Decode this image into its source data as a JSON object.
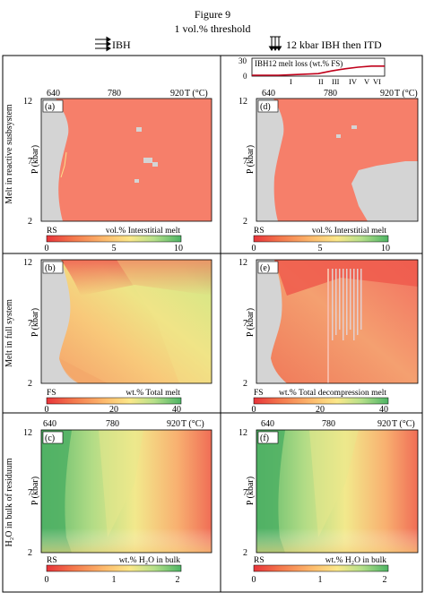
{
  "figure": {
    "title": "Figure 9",
    "subtitle": "1 vol.% threshold",
    "col_left_header": "IBH",
    "col_right_header": "12 kbar IBH then ITD"
  },
  "rows": [
    {
      "label": "Melt in reactive susbsystem"
    },
    {
      "label": "Melt in full system"
    },
    {
      "label": "H₂O in bulk of residuum"
    }
  ],
  "axes": {
    "x_ticks": [
      "640",
      "780",
      "920"
    ],
    "x_unit": "T (°C)",
    "y_ticks": [
      "12",
      "7",
      "2"
    ],
    "y_label": "P (kbar)"
  },
  "panels": [
    {
      "id": "a",
      "letter": "(a)"
    },
    {
      "id": "b",
      "letter": "(b)"
    },
    {
      "id": "c",
      "letter": "(c)"
    },
    {
      "id": "d",
      "letter": "(d)"
    },
    {
      "id": "e",
      "letter": "(e)"
    },
    {
      "id": "f",
      "letter": "(f)"
    }
  ],
  "colorbars": [
    {
      "row": 0,
      "left_tag": "RS",
      "left_title": "vol.% Interstitial melt",
      "right_tag": "RS",
      "right_title": "vol.% Interstitial melt",
      "ticks": [
        "0",
        "5",
        "10"
      ]
    },
    {
      "row": 1,
      "left_tag": "FS",
      "left_title": "wt.% Total melt",
      "right_tag": "FS",
      "right_title": "wt.% Total decompression melt",
      "ticks": [
        "0",
        "20",
        "40"
      ]
    },
    {
      "row": 2,
      "left_tag": "RS",
      "left_title": "wt.% H₂O in bulk",
      "right_tag": "RS",
      "right_title": "wt.% H₂O in bulk",
      "ticks": [
        "0",
        "1",
        "2"
      ]
    }
  ],
  "inset": {
    "title": "IBH12 melt loss (wt.% FS)",
    "y_ticks": [
      "30",
      "0"
    ],
    "stage_labels": [
      "I",
      "II",
      "III",
      "IV",
      "V",
      "VI"
    ]
  },
  "colors": {
    "grey_region": "#d4d4d4",
    "melt_fill": "#f67f6a",
    "ramp_red": "#d7191c",
    "ramp_yellow": "#fdf08d",
    "ramp_green": "#3aa65a",
    "inset_line": "#c0001a"
  },
  "chart_data": {
    "type": "heatmap",
    "title": "Figure 9",
    "subtitle": "1 vol.% threshold",
    "xlabel": "T (°C)",
    "ylabel": "P (kbar)",
    "xlim": [
      640,
      920
    ],
    "ylim": [
      2,
      12
    ],
    "panels": [
      "(a)",
      "(b)",
      "(c)",
      "(d)",
      "(e)",
      "(f)"
    ],
    "colorbar_ranges": [
      [
        0,
        10
      ],
      [
        0,
        40
      ],
      [
        0,
        2
      ]
    ],
    "inset": {
      "type": "line",
      "title": "IBH12 melt loss (wt.% FS)",
      "ylim": [
        0,
        30
      ],
      "y": [
        0,
        0,
        0,
        1,
        2,
        3,
        8,
        12,
        15,
        17,
        17
      ]
    }
  }
}
